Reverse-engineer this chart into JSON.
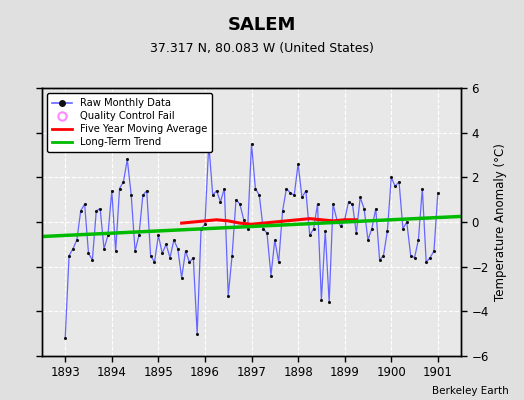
{
  "title": "SALEM",
  "subtitle": "37.317 N, 80.083 W (United States)",
  "ylabel": "Temperature Anomaly (°C)",
  "attribution": "Berkeley Earth",
  "ylim": [
    -6,
    6
  ],
  "xlim": [
    1892.5,
    1901.5
  ],
  "xticks": [
    1893,
    1894,
    1895,
    1896,
    1897,
    1898,
    1899,
    1900,
    1901
  ],
  "yticks": [
    -6,
    -4,
    -2,
    0,
    2,
    4,
    6
  ],
  "bg_color": "#e0e0e0",
  "plot_bg_color": "#e8e8e8",
  "grid_color": "#ffffff",
  "raw_color": "#6666ff",
  "dot_color": "#111111",
  "moving_avg_color": "#ff0000",
  "trend_color": "#00bb00",
  "raw_monthly_x": [
    1893.0,
    1893.083,
    1893.167,
    1893.25,
    1893.333,
    1893.417,
    1893.5,
    1893.583,
    1893.667,
    1893.75,
    1893.833,
    1893.917,
    1894.0,
    1894.083,
    1894.167,
    1894.25,
    1894.333,
    1894.417,
    1894.5,
    1894.583,
    1894.667,
    1894.75,
    1894.833,
    1894.917,
    1895.0,
    1895.083,
    1895.167,
    1895.25,
    1895.333,
    1895.417,
    1895.5,
    1895.583,
    1895.667,
    1895.75,
    1895.833,
    1895.917,
    1896.0,
    1896.083,
    1896.167,
    1896.25,
    1896.333,
    1896.417,
    1896.5,
    1896.583,
    1896.667,
    1896.75,
    1896.833,
    1896.917,
    1897.0,
    1897.083,
    1897.167,
    1897.25,
    1897.333,
    1897.417,
    1897.5,
    1897.583,
    1897.667,
    1897.75,
    1897.833,
    1897.917,
    1898.0,
    1898.083,
    1898.167,
    1898.25,
    1898.333,
    1898.417,
    1898.5,
    1898.583,
    1898.667,
    1898.75,
    1898.833,
    1898.917,
    1899.0,
    1899.083,
    1899.167,
    1899.25,
    1899.333,
    1899.417,
    1899.5,
    1899.583,
    1899.667,
    1899.75,
    1899.833,
    1899.917,
    1900.0,
    1900.083,
    1900.167,
    1900.25,
    1900.333,
    1900.417,
    1900.5,
    1900.583,
    1900.667,
    1900.75,
    1900.833,
    1900.917,
    1901.0
  ],
  "raw_monthly_y": [
    -5.2,
    -1.5,
    -1.2,
    -0.8,
    0.5,
    0.8,
    -1.4,
    -1.7,
    0.5,
    0.6,
    -1.2,
    -0.6,
    1.4,
    -1.3,
    1.5,
    1.8,
    2.8,
    1.2,
    -1.3,
    -0.6,
    1.2,
    1.4,
    -1.5,
    -1.8,
    -0.6,
    -1.4,
    -1.0,
    -1.6,
    -0.8,
    -1.2,
    -2.5,
    -1.3,
    -1.8,
    -1.6,
    -5.0,
    -0.3,
    -0.1,
    3.5,
    1.2,
    1.4,
    0.9,
    1.5,
    -3.3,
    -1.5,
    1.0,
    0.8,
    0.1,
    -0.3,
    3.5,
    1.5,
    1.2,
    -0.3,
    -0.5,
    -2.4,
    -0.8,
    -1.8,
    0.5,
    1.5,
    1.3,
    1.2,
    2.6,
    1.1,
    1.4,
    -0.6,
    -0.3,
    0.8,
    -3.5,
    -0.4,
    -3.6,
    0.8,
    0.1,
    -0.2,
    0.1,
    0.9,
    0.8,
    -0.5,
    1.1,
    0.6,
    -0.8,
    -0.3,
    0.6,
    -1.7,
    -1.5,
    -0.4,
    2.0,
    1.6,
    1.8,
    -0.3,
    0.0,
    -1.5,
    -1.6,
    -0.8,
    1.5,
    -1.8,
    -1.6,
    -1.3,
    1.3
  ],
  "moving_avg_x": [
    1895.5,
    1895.75,
    1896.0,
    1896.25,
    1896.5,
    1896.75,
    1897.0,
    1897.25,
    1897.5,
    1897.75,
    1898.0,
    1898.25,
    1898.5,
    1898.75,
    1899.0,
    1899.25
  ],
  "moving_avg_y": [
    -0.05,
    0.0,
    0.05,
    0.1,
    0.05,
    -0.05,
    -0.1,
    -0.05,
    0.0,
    0.05,
    0.1,
    0.15,
    0.1,
    0.05,
    0.1,
    0.1
  ],
  "trend_x": [
    1892.5,
    1901.5
  ],
  "trend_y": [
    -0.65,
    0.25
  ]
}
